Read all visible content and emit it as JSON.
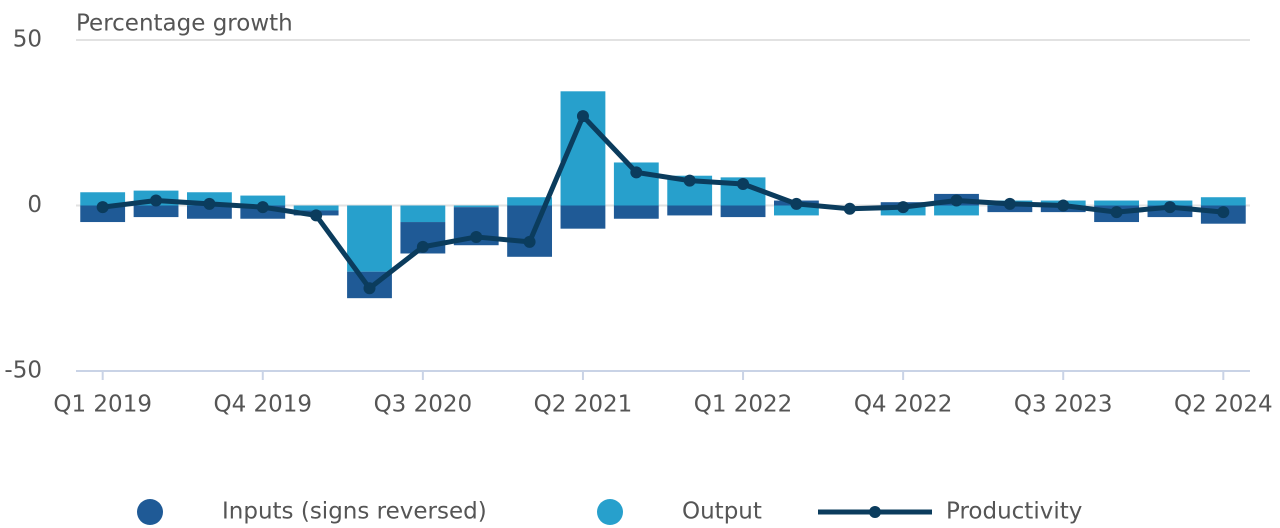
{
  "chart_data": {
    "type": "bar",
    "y_label": "Percentage growth",
    "categories": [
      "Q1 2019",
      null,
      null,
      "Q4 2019",
      null,
      null,
      "Q3 2020",
      null,
      null,
      "Q2 2021",
      null,
      null,
      "Q1 2022",
      null,
      null,
      "Q4 2022",
      null,
      null,
      "Q3 2023",
      null,
      null,
      "Q2 2024"
    ],
    "series": [
      {
        "name": "Inputs (signs reversed)",
        "type": "bar",
        "color": "#1f5a96",
        "values": [
          -5,
          -3.5,
          -4,
          -4,
          -1.5,
          -8,
          -9.5,
          -11.5,
          -15.5,
          -7,
          -4,
          -3,
          -3.5,
          1.5,
          0,
          1,
          3.5,
          -2,
          -2,
          -5,
          -3.5,
          -5.5
        ]
      },
      {
        "name": "Output",
        "type": "bar",
        "color": "#27a0cc",
        "values": [
          4,
          4.5,
          4,
          3,
          -1.5,
          -20,
          -5,
          -0.5,
          2.5,
          34.5,
          13,
          9,
          8.5,
          -3,
          0,
          -3,
          -3,
          1.5,
          1.5,
          1.5,
          1.5,
          2.5
        ]
      },
      {
        "name": "Productivity",
        "type": "line",
        "color": "#0b3c5d",
        "values": [
          -0.5,
          1.5,
          0.5,
          -0.5,
          -3,
          -25,
          -12.5,
          -9.5,
          -11,
          27,
          10,
          7.5,
          6.5,
          0.5,
          -1,
          -0.5,
          1.5,
          0.5,
          0,
          -2,
          -0.5,
          -2
        ]
      }
    ],
    "ylim": [
      -50,
      50
    ],
    "yticks": [
      -50,
      0,
      50
    ],
    "grid": true,
    "legend": "bottom"
  }
}
